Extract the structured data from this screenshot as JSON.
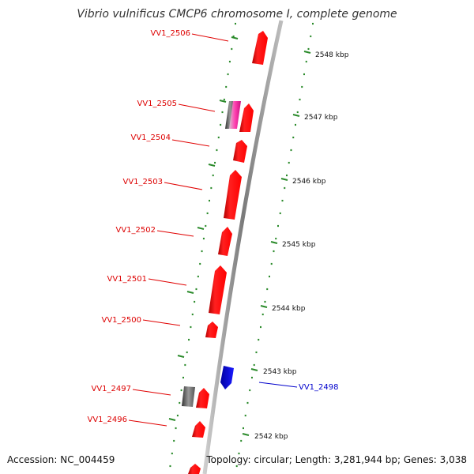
{
  "title": "Vibrio vulnificus CMCP6 chromosome I, complete genome",
  "accession_text": "Accession: NC_004459",
  "summary_text": "Topology: circular; Length: 3,281,944 bp; Genes: 3,038",
  "colors": {
    "gene_forward": "#ff0000",
    "gene_reverse": "#0000ff",
    "label_forward": "#dd0000",
    "label_reverse": "#0000cc",
    "tick": "#2a8a2a",
    "backbone": "#888888"
  },
  "scale_labels": [
    "2548 kbp",
    "2547 kbp",
    "2546 kbp",
    "2545 kbp",
    "2544 kbp",
    "2543 kbp",
    "2542 kbp"
  ],
  "genes": [
    {
      "label": "VV1_2506",
      "strand": "forward"
    },
    {
      "label": "VV1_2505",
      "strand": "forward"
    },
    {
      "label": "VV1_2504",
      "strand": "forward"
    },
    {
      "label": "VV1_2503",
      "strand": "forward"
    },
    {
      "label": "VV1_2502",
      "strand": "forward"
    },
    {
      "label": "VV1_2501",
      "strand": "forward"
    },
    {
      "label": "VV1_2500",
      "strand": "forward"
    },
    {
      "label": "VV1_2498",
      "strand": "reverse"
    },
    {
      "label": "VV1_2497",
      "strand": "forward"
    },
    {
      "label": "VV1_2496",
      "strand": "forward"
    }
  ]
}
